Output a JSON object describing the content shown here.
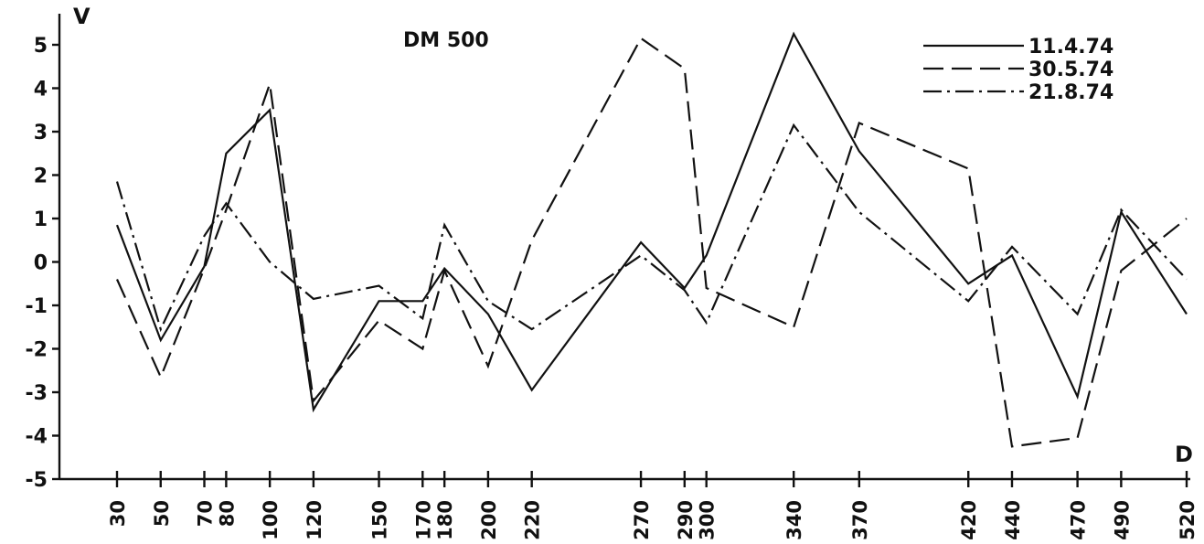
{
  "chart_data": {
    "type": "line",
    "title": "DM 500",
    "ylabel": "V",
    "xlabel": "D",
    "ylim": [
      -5,
      5
    ],
    "yticks": [
      5,
      4,
      3,
      2,
      1,
      0,
      -1,
      -2,
      -3,
      -4,
      -5
    ],
    "yticklabels": [
      "5",
      "4",
      "3",
      "2",
      "1",
      "0",
      "-1",
      "-2",
      "-3",
      "-4",
      "-5"
    ],
    "xlim": [
      30,
      520
    ],
    "x": [
      30,
      50,
      70,
      80,
      100,
      120,
      150,
      170,
      180,
      200,
      220,
      270,
      290,
      300,
      340,
      370,
      420,
      440,
      470,
      490,
      520
    ],
    "xticklabels": [
      "30",
      "50",
      "70",
      "80",
      "100",
      "120",
      "150",
      "170",
      "180",
      "200",
      "220",
      "270",
      "290",
      "300",
      "340",
      "370",
      "420",
      "440",
      "470",
      "490",
      "520"
    ],
    "grid": false,
    "legend_position": "top-right",
    "series": [
      {
        "name": "11.4.74",
        "style": "solid",
        "values": [
          0.85,
          -1.8,
          -0.1,
          2.5,
          3.5,
          -3.4,
          -0.9,
          -0.9,
          -0.15,
          -1.2,
          -2.95,
          0.45,
          -0.6,
          0.15,
          5.25,
          2.55,
          -0.5,
          0.15,
          -3.1,
          1.15,
          -1.2
        ]
      },
      {
        "name": "30.5.74",
        "style": "dashed",
        "values": [
          -0.4,
          -2.65,
          -0.15,
          1.2,
          4.1,
          -3.2,
          -1.35,
          -2.0,
          -0.2,
          -2.4,
          0.5,
          5.15,
          4.45,
          -0.6,
          -1.5,
          3.2,
          2.15,
          -4.25,
          -4.05,
          -0.2,
          1.0
        ]
      },
      {
        "name": "21.8.74",
        "style": "dashdot",
        "values": [
          1.85,
          -1.55,
          0.6,
          1.35,
          0.0,
          -0.85,
          -0.55,
          -1.3,
          0.85,
          -0.9,
          -1.55,
          0.15,
          -0.65,
          -1.4,
          3.15,
          1.15,
          -0.9,
          0.35,
          -1.2,
          1.2,
          -0.4
        ]
      }
    ]
  }
}
